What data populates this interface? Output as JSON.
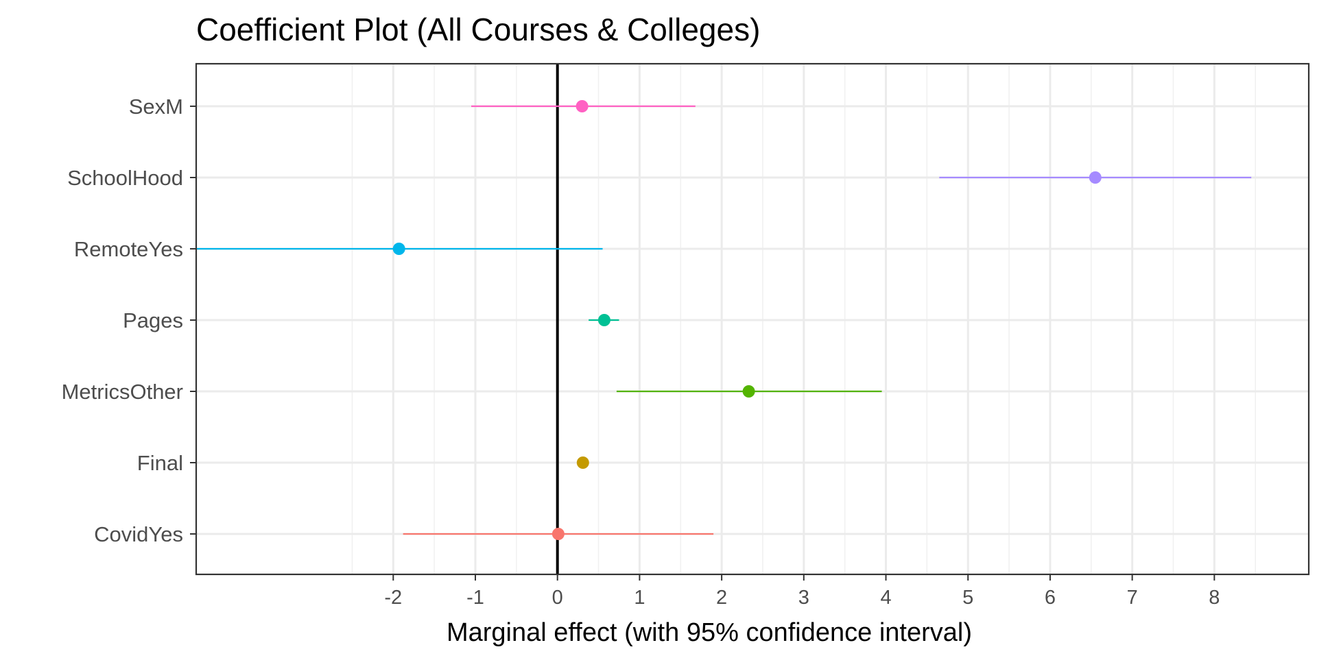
{
  "chart_data": {
    "type": "coefficient",
    "title": "Coefficient Plot (All Courses & Colleges)",
    "xlabel": "Marginal effect (with 95% confidence interval)",
    "ylabel": "",
    "xlim": [
      -4.4,
      9.15
    ],
    "x_ticks": [
      -2,
      -1,
      0,
      1,
      2,
      3,
      4,
      5,
      6,
      7,
      8
    ],
    "x_tick_labels": [
      "-2",
      "-1",
      "0",
      "1",
      "2",
      "3",
      "4",
      "5",
      "6",
      "7",
      "8"
    ],
    "grid": true,
    "reference_line_x": 0,
    "terms": [
      {
        "name": "SexM",
        "estimate": 0.3,
        "lower": -1.05,
        "upper": 1.68,
        "color": "#ff61c3"
      },
      {
        "name": "SchoolHood",
        "estimate": 6.55,
        "lower": 4.65,
        "upper": 8.45,
        "color": "#a58aff"
      },
      {
        "name": "RemoteYes",
        "estimate": -1.93,
        "lower": -4.43,
        "upper": 0.55,
        "color": "#00b6eb"
      },
      {
        "name": "Pages",
        "estimate": 0.57,
        "lower": 0.38,
        "upper": 0.75,
        "color": "#00c094"
      },
      {
        "name": "MetricsOther",
        "estimate": 2.33,
        "lower": 0.72,
        "upper": 3.95,
        "color": "#53b400"
      },
      {
        "name": "Final",
        "estimate": 0.31,
        "lower": 0.26,
        "upper": 0.36,
        "color": "#c49a00"
      },
      {
        "name": "CovidYes",
        "estimate": 0.01,
        "lower": -1.88,
        "upper": 1.9,
        "color": "#f8766d"
      }
    ]
  }
}
